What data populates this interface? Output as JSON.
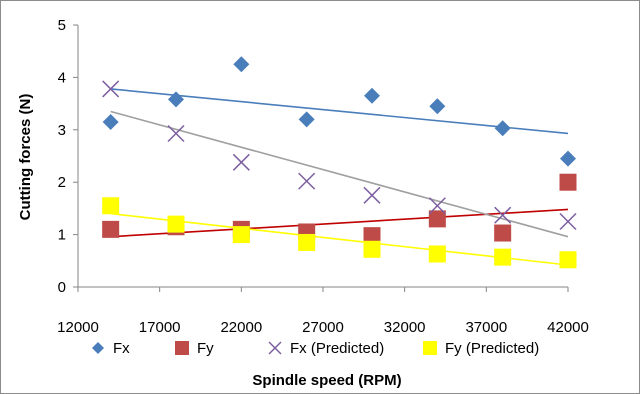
{
  "chart_data": {
    "type": "scatter",
    "title": "",
    "xlabel": "Spindle speed (RPM)",
    "ylabel": "Cutting forces (N)",
    "xlim": [
      12000,
      42000
    ],
    "ylim": [
      0,
      5
    ],
    "x_ticks": [
      "12000",
      "17000",
      "22000",
      "27000",
      "32000",
      "37000",
      "42000"
    ],
    "y_ticks": [
      "0",
      "1",
      "2",
      "3",
      "4",
      "5"
    ],
    "grid": false,
    "legend_position": "bottom",
    "x": [
      14000,
      18000,
      22000,
      26000,
      30000,
      34000,
      38000,
      42000
    ],
    "series": [
      {
        "name": "Fx",
        "marker": "diamond",
        "color": "#4a7ebb",
        "values": [
          3.15,
          3.58,
          4.25,
          3.2,
          3.65,
          3.45,
          3.03,
          2.45
        ],
        "trendline": {
          "color": "#4a7ebb",
          "from": [
            14000,
            3.78
          ],
          "to": [
            42000,
            2.93
          ]
        }
      },
      {
        "name": "Fy",
        "marker": "square",
        "color": "#be4b48",
        "values": [
          1.1,
          1.15,
          1.1,
          1.05,
          0.98,
          1.3,
          1.03,
          2.0
        ],
        "trendline": {
          "color": "#c00000",
          "from": [
            14000,
            0.96
          ],
          "to": [
            42000,
            1.48
          ]
        }
      },
      {
        "name": "Fx (Predicted)",
        "marker": "x",
        "color": "#7d5fa0",
        "values": [
          3.78,
          2.93,
          2.38,
          2.02,
          1.75,
          1.55,
          1.37,
          1.25
        ],
        "trendline": {
          "color": "#a0a0a0",
          "from": [
            14000,
            3.35
          ],
          "to": [
            42000,
            0.96
          ]
        }
      },
      {
        "name": "Fy (Predicted)",
        "marker": "square",
        "color": "#ffff00",
        "values": [
          1.55,
          1.2,
          1.0,
          0.85,
          0.72,
          0.63,
          0.57,
          0.52
        ],
        "trendline": {
          "color": "#ffff00",
          "from": [
            14000,
            1.4
          ],
          "to": [
            42000,
            0.42
          ]
        }
      }
    ]
  }
}
